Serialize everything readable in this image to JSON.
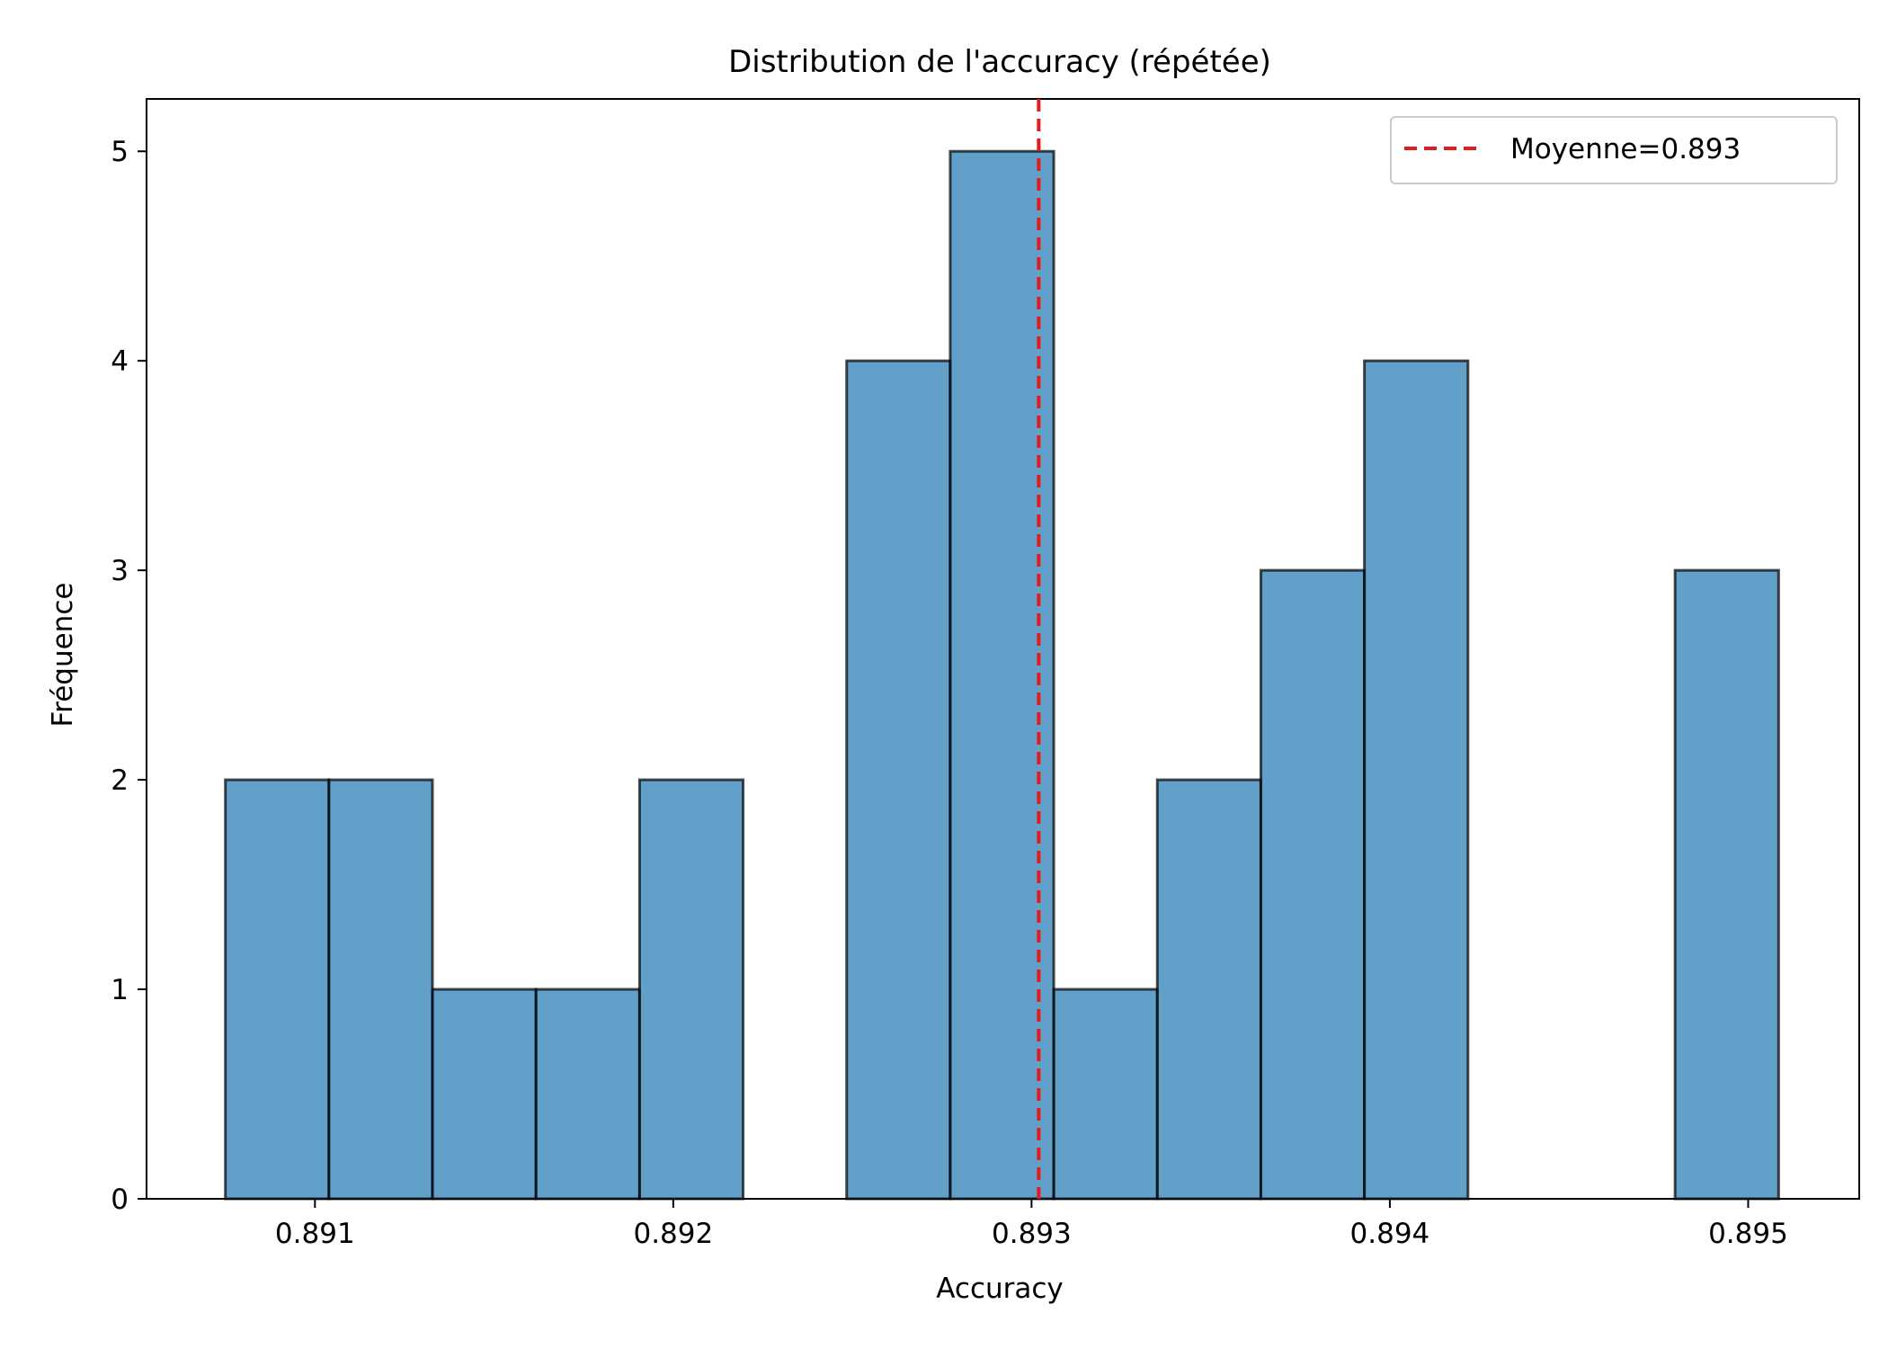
{
  "chart_data": {
    "type": "bar",
    "title": "Distribution de l'accuracy (répétée)",
    "xlabel": "Accuracy",
    "ylabel": "Fréquence",
    "xlim": [
      0.89053,
      0.89531
    ],
    "ylim": [
      0,
      5.25
    ],
    "xticks": [
      0.891,
      0.892,
      0.893,
      0.894,
      0.895
    ],
    "xtick_labels": [
      "0.891",
      "0.892",
      "0.893",
      "0.894",
      "0.895"
    ],
    "yticks": [
      0,
      1,
      2,
      3,
      4,
      5
    ],
    "ytick_labels": [
      "0",
      "1",
      "2",
      "3",
      "4",
      "5"
    ],
    "bin_start": 0.89075,
    "bin_width": 0.000289,
    "counts": [
      2,
      2,
      1,
      1,
      2,
      0,
      4,
      5,
      1,
      2,
      3,
      4,
      0,
      0,
      3
    ],
    "bar_color": "#1f77b4",
    "bar_edge_color": "#000000",
    "mean_line": {
      "value": 0.89302,
      "color": "#e41a1c",
      "label": "Moyenne=0.893"
    },
    "legend_position": "top-right",
    "grid": false
  }
}
